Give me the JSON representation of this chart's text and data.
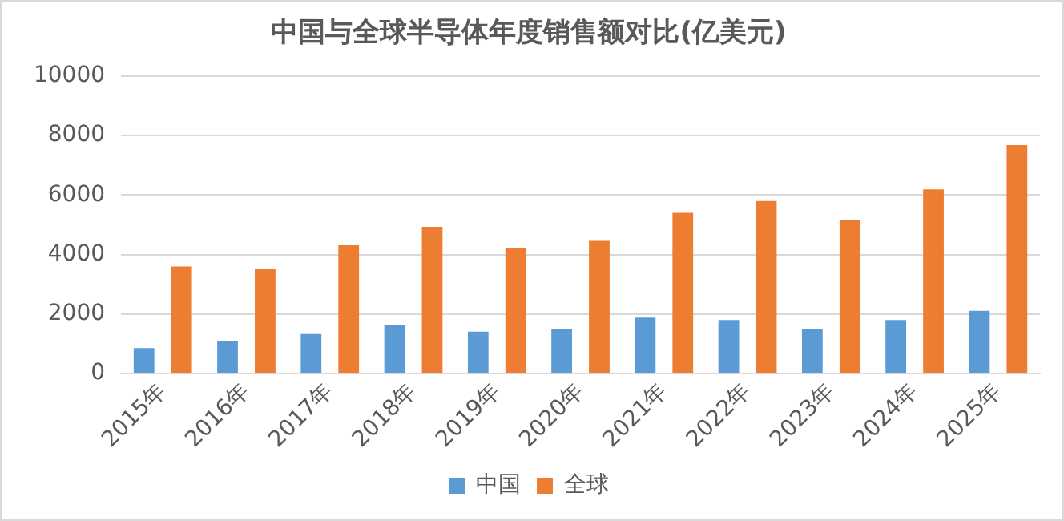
{
  "chart_data": {
    "type": "bar",
    "title": "中国与全球半导体年度销售额对比(亿美元)",
    "categories": [
      "2015年",
      "2016年",
      "2017年",
      "2018年",
      "2019年",
      "2020年",
      "2021年",
      "2022年",
      "2023年",
      "2024年",
      "2025年"
    ],
    "series": [
      {
        "name": "中国",
        "color": "#5b9bd5",
        "values": [
          860,
          1100,
          1330,
          1640,
          1410,
          1490,
          1880,
          1800,
          1490,
          1800,
          2110
        ]
      },
      {
        "name": "全球",
        "color": "#ed7d31",
        "values": [
          3600,
          3520,
          4310,
          4930,
          4230,
          4460,
          5400,
          5800,
          5170,
          6190,
          7680
        ]
      }
    ],
    "ylim": [
      0,
      10000
    ],
    "yticks": [
      0,
      2000,
      4000,
      6000,
      8000,
      10000
    ],
    "grid": "y",
    "legend": "bottom"
  }
}
